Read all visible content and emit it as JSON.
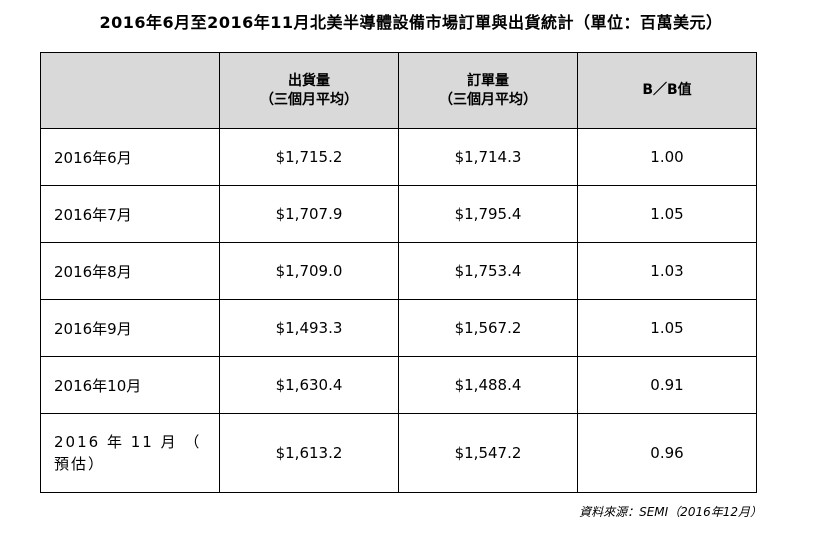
{
  "title": "2016年6月至2016年11月北美半導體設備市場訂單與出貨統計（單位：百萬美元）",
  "table": {
    "headers": [
      {
        "line1": "",
        "line2": ""
      },
      {
        "line1": "出貨量",
        "line2": "（三個月平均）"
      },
      {
        "line1": "訂單量",
        "line2": "（三個月平均）"
      },
      {
        "line1": "B／B值",
        "line2": ""
      }
    ],
    "rows": [
      {
        "month": "2016年6月",
        "shipments": "$1,715.2",
        "orders": "$1,714.3",
        "bb": "1.00"
      },
      {
        "month": "2016年7月",
        "shipments": "$1,707.9",
        "orders": "$1,795.4",
        "bb": "1.05"
      },
      {
        "month": "2016年8月",
        "shipments": "$1,709.0",
        "orders": "$1,753.4",
        "bb": "1.03"
      },
      {
        "month": "2016年9月",
        "shipments": "$1,493.3",
        "orders": "$1,567.2",
        "bb": "1.05"
      },
      {
        "month": "2016年10月",
        "shipments": "$1,630.4",
        "orders": "$1,488.4",
        "bb": "0.91"
      },
      {
        "month": "2016 年 11 月 （ 預估）",
        "shipments": "$1,613.2",
        "orders": "$1,547.2",
        "bb": "0.96"
      }
    ]
  },
  "source": "資料來源：SEMI（2016年12月）"
}
